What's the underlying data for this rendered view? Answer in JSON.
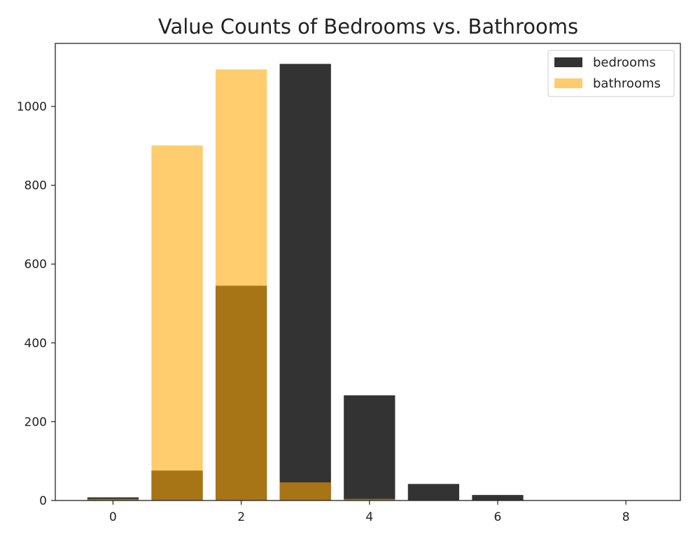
{
  "chart_data": {
    "type": "bar",
    "title": "Value Counts of Bedrooms vs. Bathrooms",
    "xlabel": "",
    "ylabel": "",
    "xlim": [
      -0.9,
      8.85
    ],
    "ylim": [
      0,
      1160
    ],
    "xticks": [
      0,
      2,
      4,
      6,
      8
    ],
    "yticks": [
      0,
      200,
      400,
      600,
      800,
      1000
    ],
    "bar_width": 0.8,
    "legend_position": "upper-right",
    "grid": false,
    "series": [
      {
        "name": "bedrooms",
        "color": "#000000",
        "alpha": 0.8,
        "x": [
          0,
          1,
          2,
          3,
          4,
          5,
          6
        ],
        "values": [
          8,
          76,
          545,
          1108,
          267,
          42,
          14
        ]
      },
      {
        "name": "bathrooms",
        "color": "#ffa500",
        "alpha": 0.57,
        "x": [
          0,
          1,
          2,
          3,
          4
        ],
        "values": [
          4,
          901,
          1094,
          46,
          4
        ]
      }
    ]
  }
}
